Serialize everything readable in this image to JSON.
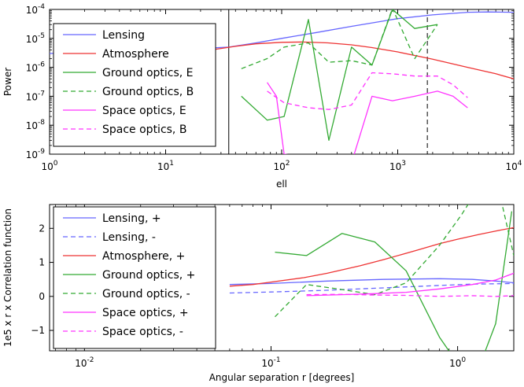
{
  "chart_data": [
    {
      "type": "line",
      "xscale": "log",
      "yscale": "log",
      "xlabel": "ell",
      "ylabel": "Power",
      "xlim": [
        1,
        10000
      ],
      "ylim": [
        1e-09,
        0.0001
      ],
      "x_tick_values": [
        1,
        10,
        100,
        1000,
        10000
      ],
      "x_tick_labels": [
        [
          "10",
          "0"
        ],
        [
          "10",
          "1"
        ],
        [
          "10",
          "2"
        ],
        [
          "10",
          "3"
        ],
        [
          "10",
          "4"
        ]
      ],
      "y_tick_values": [
        1e-09,
        1e-08,
        1e-07,
        1e-06,
        1e-05,
        0.0001
      ],
      "y_tick_labels": [
        [
          "10",
          "-9"
        ],
        [
          "10",
          "-8"
        ],
        [
          "10",
          "-7"
        ],
        [
          "10",
          "-6"
        ],
        [
          "10",
          "-5"
        ],
        [
          "10",
          "-4"
        ]
      ],
      "legend_position": "upper-left",
      "vlines": [
        {
          "x": 35,
          "color": "#000000",
          "style": "solid"
        },
        {
          "x": 1800,
          "color": "#000000",
          "style": "dashed"
        }
      ],
      "series": [
        {
          "name": "Lensing",
          "color": "#6666ff",
          "style": "solid",
          "x": [
            1,
            3,
            10,
            20,
            35,
            60,
            100,
            200,
            400,
            700,
            1000,
            2000,
            4000,
            6000,
            10000
          ],
          "y": [
            3e-06,
            3.5e-06,
            4e-06,
            4.5e-06,
            5e-06,
            7e-06,
            1e-05,
            1.6e-05,
            2.6e-05,
            3.8e-05,
            4.8e-05,
            6.5e-05,
            8e-05,
            8.2e-05,
            8e-05
          ]
        },
        {
          "name": "Atmosphere",
          "color": "#ee3333",
          "style": "solid",
          "x": [
            25,
            40,
            60,
            100,
            150,
            250,
            400,
            600,
            1000,
            2000,
            4000,
            7000,
            10000
          ],
          "y": [
            4e-06,
            5.3e-06,
            6.5e-06,
            7.3e-06,
            7.5e-06,
            7e-06,
            6e-06,
            4.8e-06,
            3.4e-06,
            1.9e-06,
            1e-06,
            6e-07,
            4e-07
          ]
        },
        {
          "name": "Ground optics, E",
          "color": "#33aa33",
          "style": "solid",
          "x": [
            45,
            75,
            105,
            170,
            255,
            400,
            600,
            900,
            1400,
            2200
          ],
          "y": [
            1e-07,
            1.5e-08,
            2e-08,
            4.5e-05,
            3e-09,
            5e-06,
            1.2e-06,
            0.0001,
            2.2e-05,
            3e-05
          ]
        },
        {
          "name": "Ground optics, B",
          "color": "#33aa33",
          "style": "dashed",
          "x": [
            45,
            75,
            105,
            170,
            255,
            400,
            600,
            900,
            1400,
            2200
          ],
          "y": [
            9e-07,
            2e-06,
            5e-06,
            7e-06,
            1.5e-06,
            1.7e-06,
            1.2e-06,
            0.00011,
            2e-06,
            3e-05
          ]
        },
        {
          "name": "Space optics, E",
          "color": "#ff33ff",
          "style": "solid",
          "x": [
            75,
            90,
            105,
            400,
            600,
            900,
            1400,
            2200,
            3000,
            4000
          ],
          "y": [
            3e-07,
            1e-07,
            1e-09,
            5e-10,
            1e-07,
            7e-08,
            1e-07,
            1.5e-07,
            1e-07,
            4e-08
          ]
        },
        {
          "name": "Space optics, B",
          "color": "#ff33ff",
          "style": "dashed",
          "x": [
            75,
            105,
            170,
            255,
            400,
            600,
            900,
            1400,
            2200,
            3000,
            4000
          ],
          "y": [
            1.5e-07,
            6e-08,
            4e-08,
            3.5e-08,
            5e-08,
            6.5e-07,
            6e-07,
            5e-07,
            5e-07,
            2.5e-07,
            9e-08
          ]
        }
      ]
    },
    {
      "type": "line",
      "xscale": "log",
      "yscale": "linear",
      "xlabel": "Angular separation r [degrees]",
      "ylabel": "1e5 x r x Correlation function",
      "xlim": [
        0.0065,
        2
      ],
      "ylim": [
        -1.6,
        2.7
      ],
      "x_tick_values": [
        0.01,
        0.1,
        1
      ],
      "x_tick_labels": [
        [
          "10",
          "-2"
        ],
        [
          "10",
          "-1"
        ],
        [
          "10",
          "0"
        ]
      ],
      "y_tick_values": [
        -1,
        0,
        1,
        2
      ],
      "y_tick_labels": [
        "−1",
        "0",
        "1",
        "2"
      ],
      "legend_position": "upper-left",
      "series": [
        {
          "name": "Lensing, +",
          "color": "#6666ff",
          "style": "solid",
          "x": [
            0.06,
            0.1,
            0.2,
            0.4,
            0.8,
            1.2,
            1.6,
            2.0
          ],
          "y": [
            0.35,
            0.38,
            0.45,
            0.5,
            0.52,
            0.5,
            0.45,
            0.4
          ]
        },
        {
          "name": "Lensing, -",
          "color": "#6666ff",
          "style": "dashed",
          "x": [
            0.06,
            0.1,
            0.2,
            0.4,
            0.8,
            1.2,
            1.6,
            2.0
          ],
          "y": [
            0.1,
            0.13,
            0.18,
            0.25,
            0.32,
            0.36,
            0.37,
            0.38
          ]
        },
        {
          "name": "Atmosphere, +",
          "color": "#ee3333",
          "style": "solid",
          "x": [
            0.06,
            0.08,
            0.1,
            0.15,
            0.2,
            0.3,
            0.4,
            0.6,
            0.8,
            1.0,
            1.3,
            1.6,
            2.0
          ],
          "y": [
            0.3,
            0.35,
            0.42,
            0.55,
            0.68,
            0.9,
            1.08,
            1.35,
            1.55,
            1.68,
            1.82,
            1.92,
            2.02
          ]
        },
        {
          "name": "Ground optics, +",
          "color": "#33aa33",
          "style": "solid",
          "x": [
            0.105,
            0.155,
            0.24,
            0.36,
            0.53,
            0.8,
            1.2,
            1.6,
            1.95
          ],
          "y": [
            1.3,
            1.2,
            1.85,
            1.6,
            0.75,
            -1.2,
            -2.6,
            -0.8,
            2.5
          ]
        },
        {
          "name": "Ground optics, -",
          "color": "#33aa33",
          "style": "dashed",
          "x": [
            0.105,
            0.155,
            0.24,
            0.36,
            0.53,
            0.8,
            1.05,
            1.2,
            1.6,
            1.75,
            2.0
          ],
          "y": [
            -0.6,
            0.35,
            0.2,
            0.05,
            0.4,
            1.5,
            2.4,
            2.9,
            3.3,
            2.6,
            1.2
          ]
        },
        {
          "name": "Space optics, +",
          "color": "#ff33ff",
          "style": "solid",
          "x": [
            0.155,
            0.24,
            0.36,
            0.53,
            0.8,
            1.2,
            1.6,
            2.0
          ],
          "y": [
            0.02,
            0.05,
            0.08,
            0.12,
            0.22,
            0.35,
            0.48,
            0.68
          ]
        },
        {
          "name": "Space optics, -",
          "color": "#ff33ff",
          "style": "dashed",
          "x": [
            0.155,
            0.24,
            0.36,
            0.53,
            0.8,
            1.2,
            1.6,
            2.0
          ],
          "y": [
            0.05,
            0.06,
            0.04,
            0.03,
            0.0,
            0.02,
            0.0,
            0.02
          ]
        }
      ]
    }
  ]
}
